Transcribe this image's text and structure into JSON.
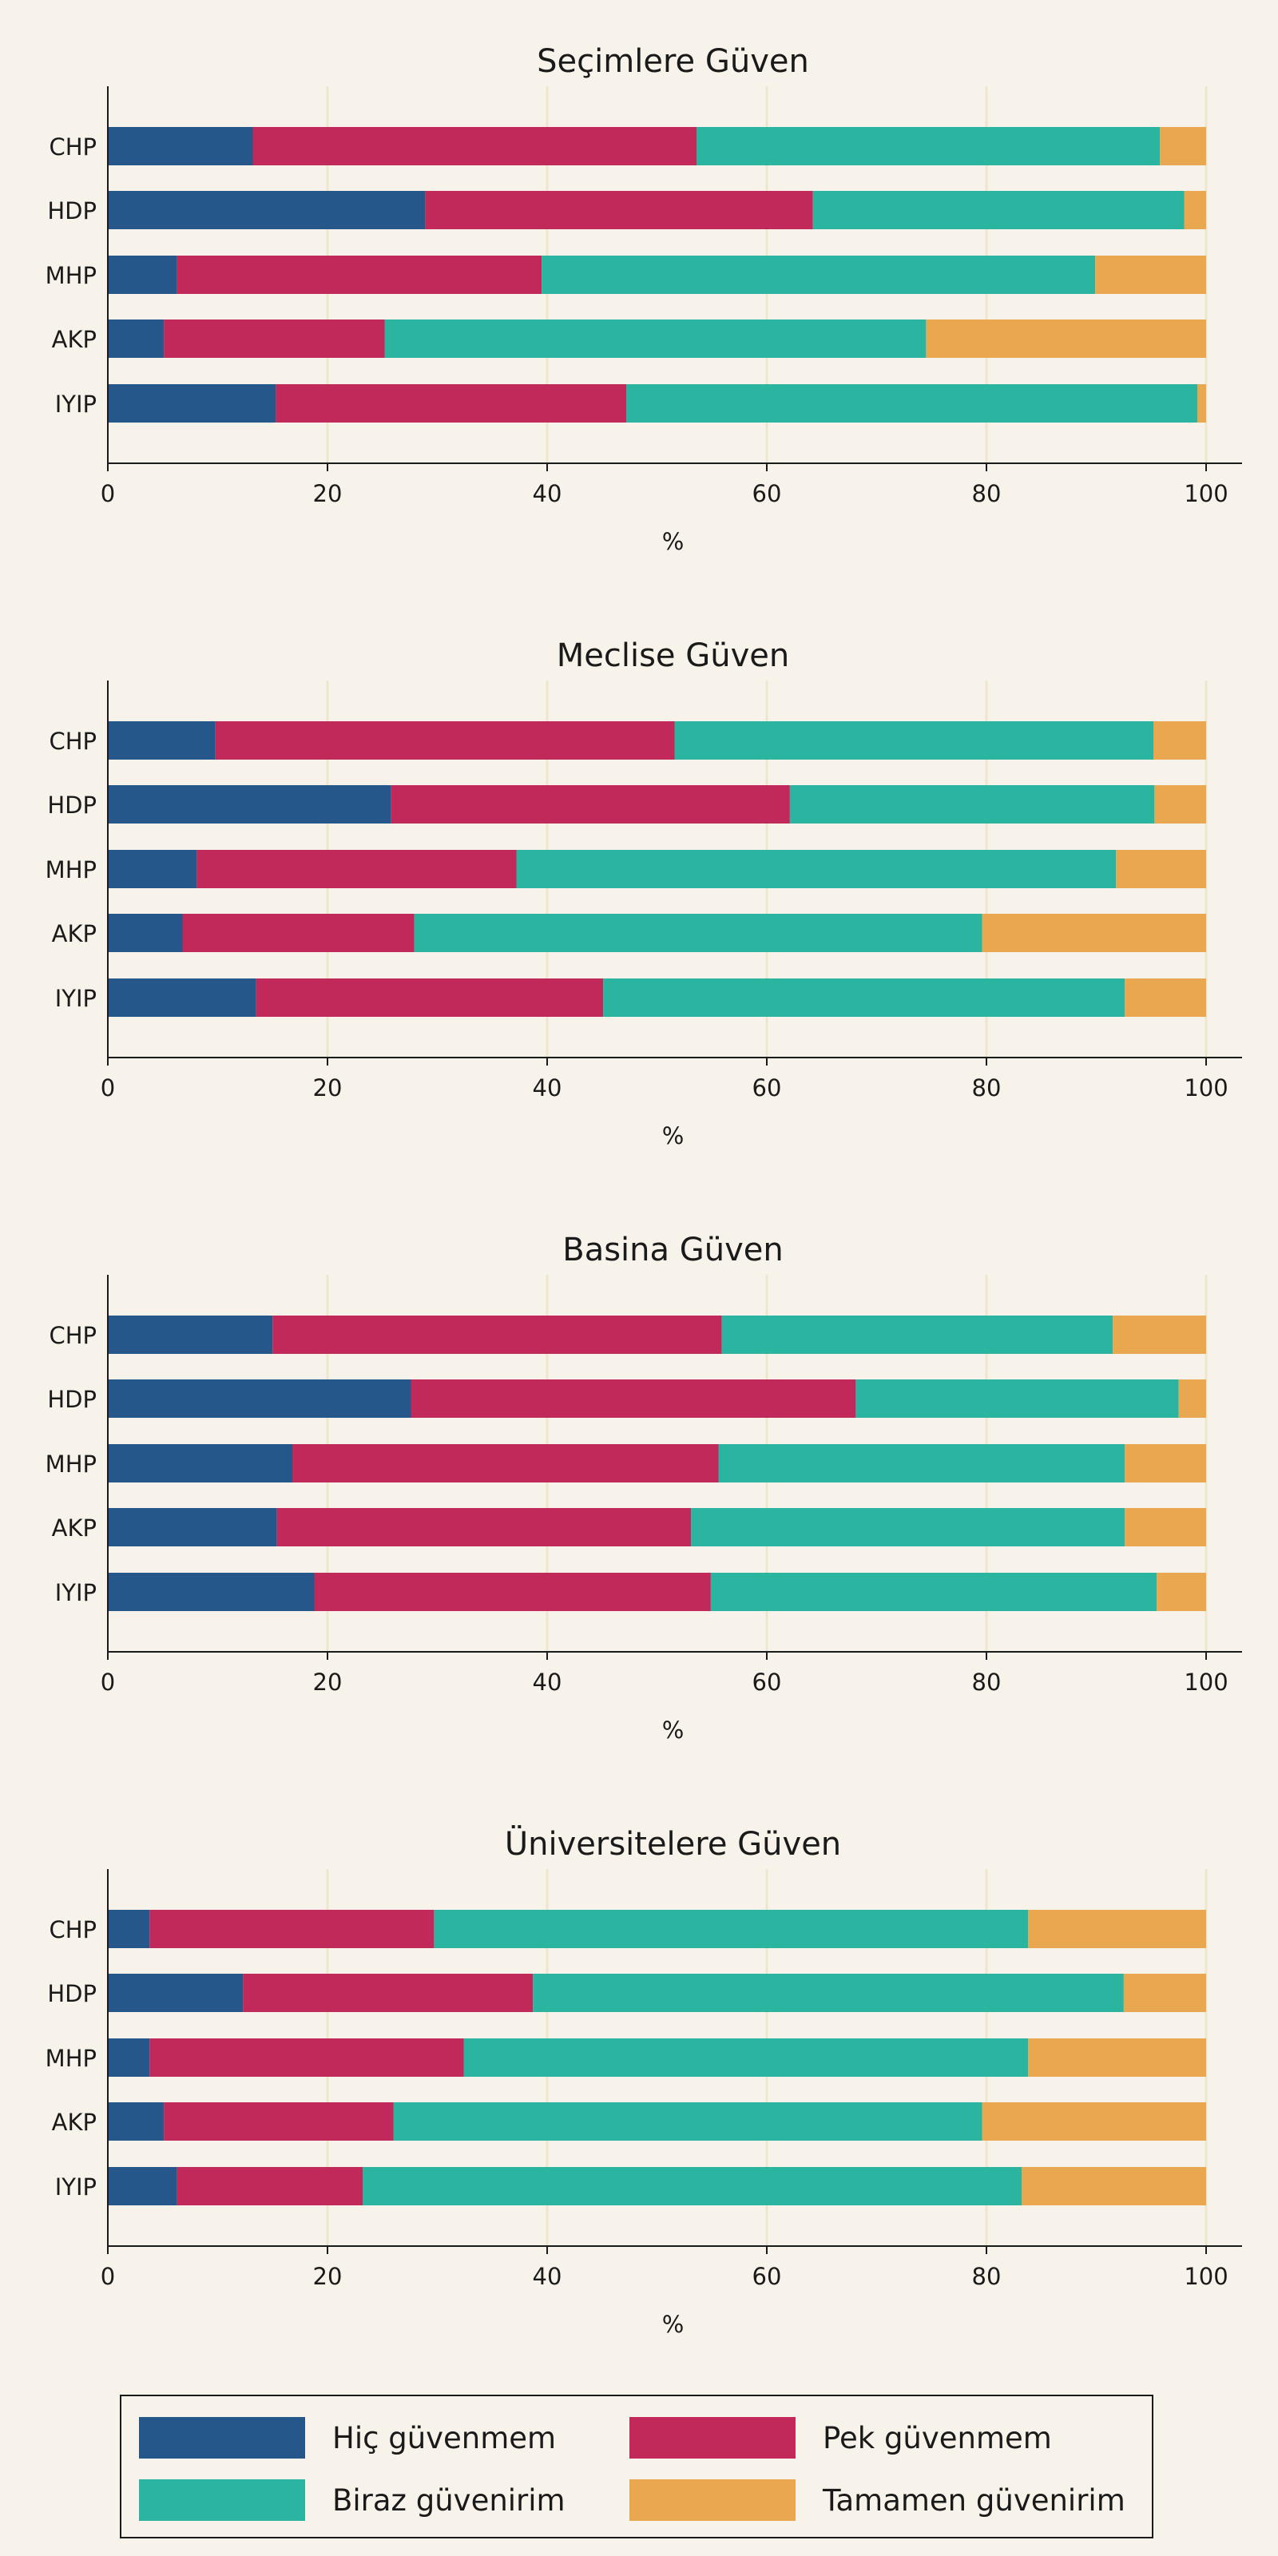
{
  "colors": {
    "hic": "#26578a",
    "pek": "#c1295a",
    "biraz": "#2bb5a0",
    "tamamen": "#e9a84f",
    "background": "#f8f3ea",
    "grid": "#efe5cf",
    "axis": "#1a1a1a"
  },
  "legend": {
    "items": [
      {
        "label": "Hiç güvenmem",
        "color": "#26578a"
      },
      {
        "label": "Pek güvenmem",
        "color": "#c1295a"
      },
      {
        "label": "Biraz güvenirim",
        "color": "#2bb5a0"
      },
      {
        "label": "Tamamen güvenirim",
        "color": "#e9a84f"
      }
    ]
  },
  "chart_data": [
    {
      "type": "bar",
      "stacked": true,
      "orientation": "horizontal",
      "title": "Seçimlere Güven",
      "xlabel": "%",
      "xlim": [
        0,
        100
      ],
      "xticks": [
        0,
        20,
        40,
        60,
        80,
        100
      ],
      "categories": [
        "CHP",
        "HDP",
        "MHP",
        "AKP",
        "IYIP"
      ],
      "series": [
        {
          "name": "Hiç güvenmem",
          "values": [
            13.2,
            28.9,
            6.3,
            5.1,
            15.3
          ]
        },
        {
          "name": "Pek güvenmem",
          "values": [
            40.4,
            35.3,
            33.2,
            20.1,
            31.9
          ]
        },
        {
          "name": "Biraz güvenirim",
          "values": [
            42.2,
            33.8,
            50.4,
            49.3,
            52.0
          ]
        },
        {
          "name": "Tamamen güvenirim",
          "values": [
            4.2,
            2.0,
            10.1,
            25.5,
            0.8
          ]
        }
      ]
    },
    {
      "type": "bar",
      "stacked": true,
      "orientation": "horizontal",
      "title": "Meclise Güven",
      "xlabel": "%",
      "xlim": [
        0,
        100
      ],
      "xticks": [
        0,
        20,
        40,
        60,
        80,
        100
      ],
      "categories": [
        "CHP",
        "HDP",
        "MHP",
        "AKP",
        "IYIP"
      ],
      "series": [
        {
          "name": "Hiç güvenmem",
          "values": [
            9.8,
            25.8,
            8.1,
            6.8,
            13.5
          ]
        },
        {
          "name": "Pek güvenmem",
          "values": [
            41.8,
            36.3,
            29.1,
            21.1,
            31.6
          ]
        },
        {
          "name": "Biraz güvenirim",
          "values": [
            43.6,
            33.2,
            54.6,
            51.7,
            47.5
          ]
        },
        {
          "name": "Tamamen güvenirim",
          "values": [
            4.8,
            4.7,
            8.2,
            20.4,
            7.4
          ]
        }
      ]
    },
    {
      "type": "bar",
      "stacked": true,
      "orientation": "horizontal",
      "title": "Basina Güven",
      "xlabel": "%",
      "xlim": [
        0,
        100
      ],
      "xticks": [
        0,
        20,
        40,
        60,
        80,
        100
      ],
      "categories": [
        "CHP",
        "HDP",
        "MHP",
        "AKP",
        "IYIP"
      ],
      "series": [
        {
          "name": "Hiç güvenmem",
          "values": [
            15.0,
            27.6,
            16.8,
            15.4,
            18.8
          ]
        },
        {
          "name": "Pek güvenmem",
          "values": [
            40.9,
            40.5,
            38.8,
            37.7,
            36.1
          ]
        },
        {
          "name": "Biraz güvenirim",
          "values": [
            35.6,
            29.4,
            37.0,
            39.5,
            40.6
          ]
        },
        {
          "name": "Tamamen güvenirim",
          "values": [
            8.5,
            2.5,
            7.4,
            7.4,
            4.5
          ]
        }
      ]
    },
    {
      "type": "bar",
      "stacked": true,
      "orientation": "horizontal",
      "title": "Üniversitelere Güven",
      "xlabel": "%",
      "xlim": [
        0,
        100
      ],
      "xticks": [
        0,
        20,
        40,
        60,
        80,
        100
      ],
      "categories": [
        "CHP",
        "HDP",
        "MHP",
        "AKP",
        "IYIP"
      ],
      "series": [
        {
          "name": "Hiç güvenmem",
          "values": [
            3.8,
            12.3,
            3.8,
            5.1,
            6.3
          ]
        },
        {
          "name": "Pek güvenmem",
          "values": [
            25.9,
            26.4,
            28.6,
            20.9,
            16.9
          ]
        },
        {
          "name": "Biraz güvenirim",
          "values": [
            54.1,
            53.8,
            51.4,
            53.6,
            60.0
          ]
        },
        {
          "name": "Tamamen güvenirim",
          "values": [
            16.2,
            7.5,
            16.2,
            20.4,
            16.8
          ]
        }
      ]
    }
  ]
}
